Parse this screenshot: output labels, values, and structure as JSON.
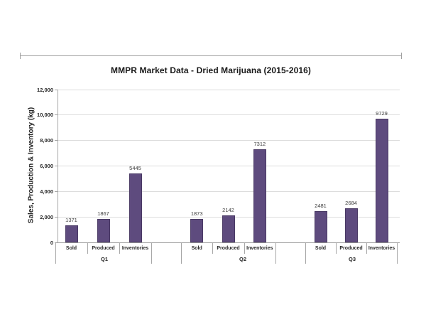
{
  "chart_data": {
    "type": "bar",
    "title": "MMPR Market Data - Dried Marijuana (2015-2016)",
    "ylabel": "Sales, Production & Inventory (kg)",
    "xlabel": "",
    "categories": [
      "Sold",
      "Produced",
      "Inventories"
    ],
    "groups": [
      {
        "label": "Q1",
        "values": [
          1371,
          1867,
          5445
        ]
      },
      {
        "label": "Q2",
        "values": [
          1873,
          2142,
          7312
        ]
      },
      {
        "label": "Q3",
        "values": [
          2481,
          2684,
          9729
        ]
      }
    ],
    "ylim": [
      0,
      12000
    ],
    "ytick_step": 2000,
    "yticks": [
      {
        "value": 0,
        "label": "0"
      },
      {
        "value": 2000,
        "label": "2,000"
      },
      {
        "value": 4000,
        "label": "4,000"
      },
      {
        "value": 6000,
        "label": "6,000"
      },
      {
        "value": 8000,
        "label": "8,000"
      },
      {
        "value": 10000,
        "label": "10,000"
      },
      {
        "value": 12000,
        "label": "12,000"
      }
    ],
    "grid": true,
    "legend_position": "none",
    "bar_color": "#5E4B7E",
    "bar_border_color": "#493964",
    "gridline_color": "#dcdcdc",
    "axis_color": "#a6a6a6"
  }
}
